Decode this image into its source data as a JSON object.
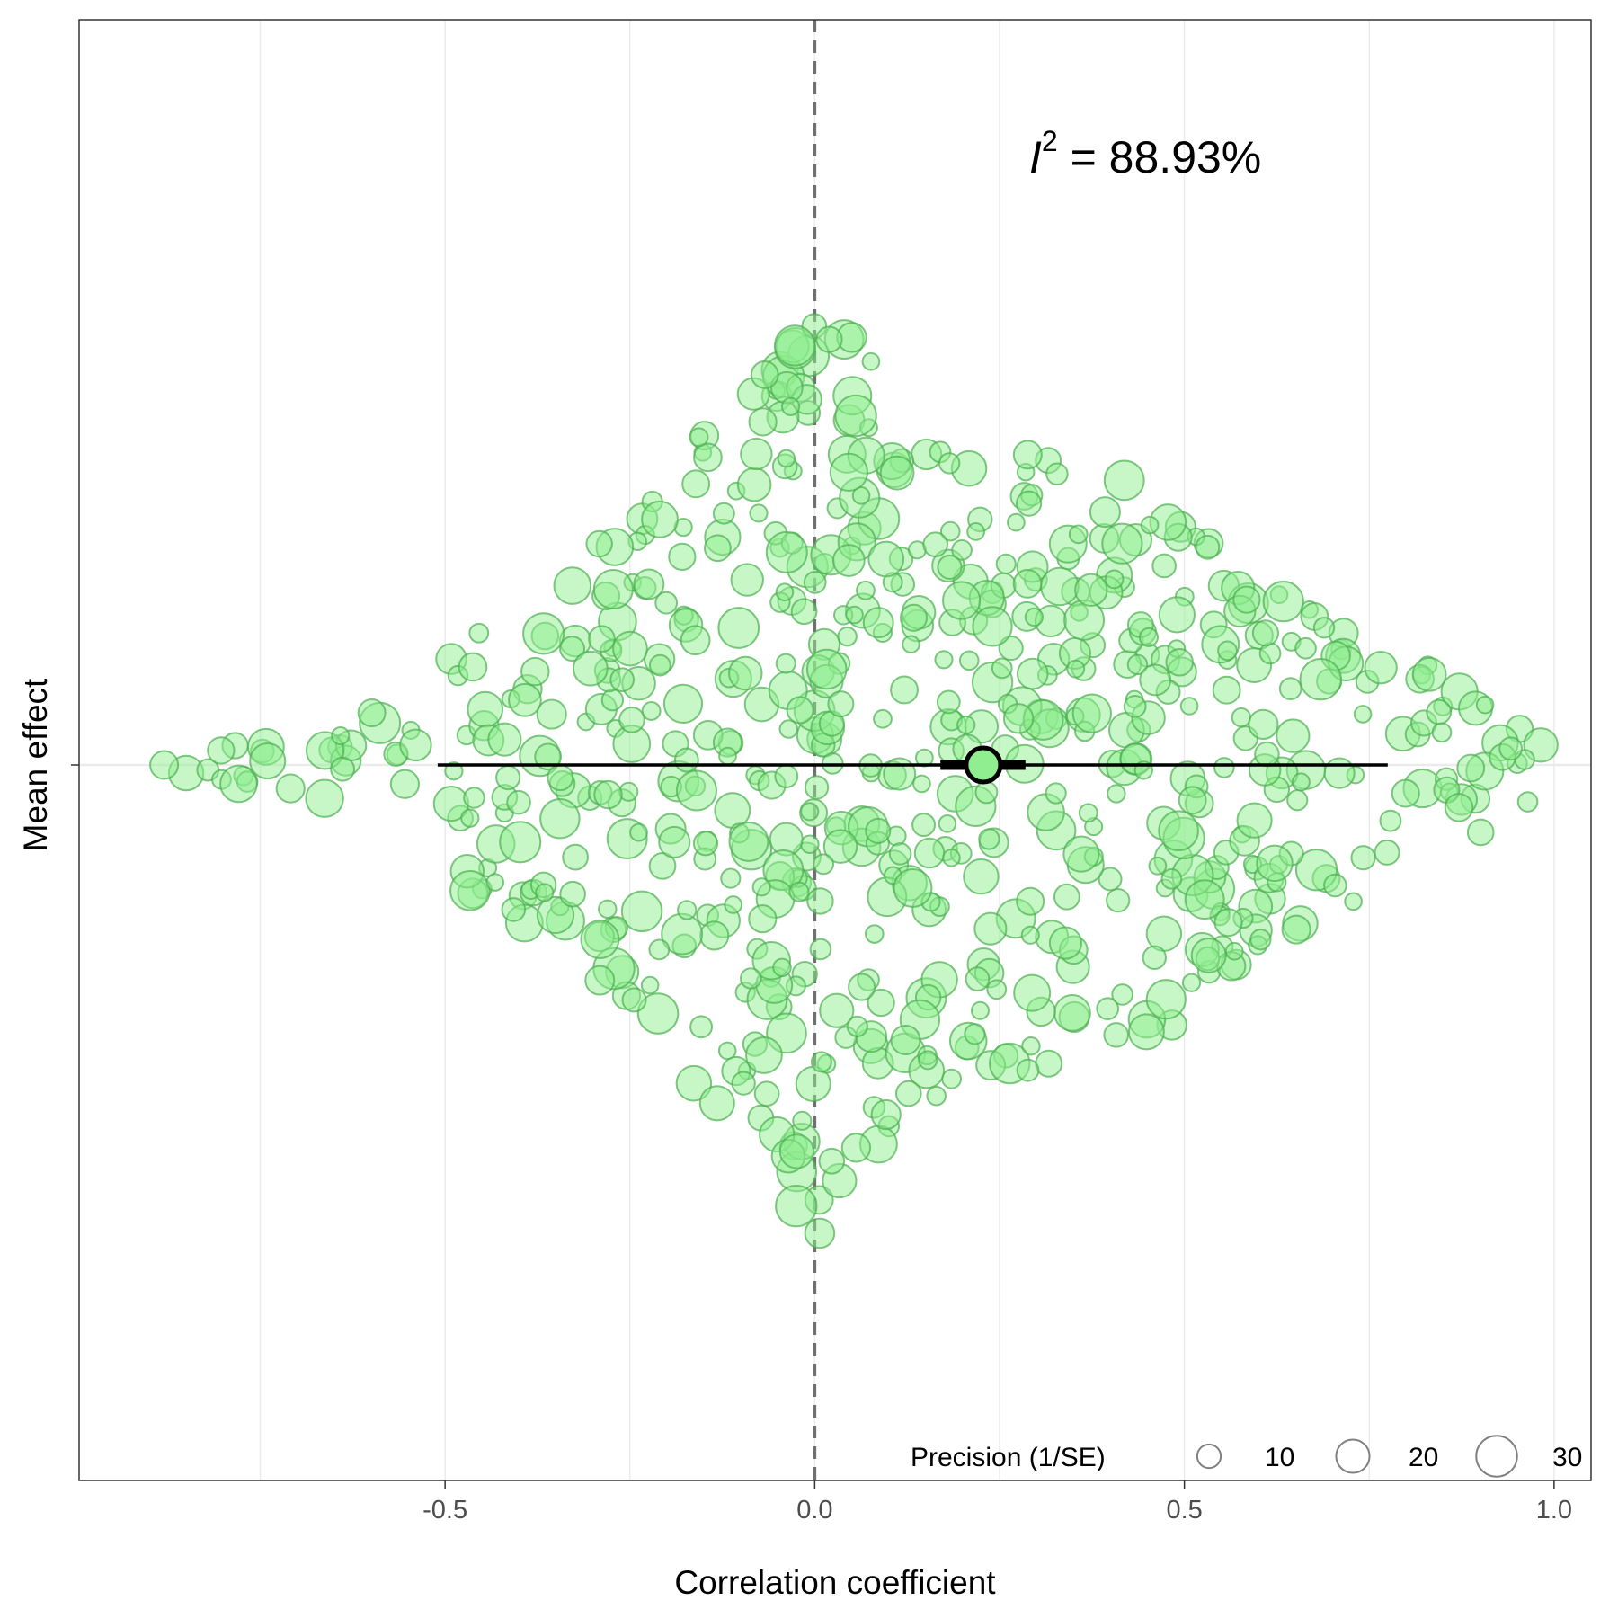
{
  "chart_data": {
    "type": "scatter",
    "subtype": "orchard-plot",
    "xlabel": "Correlation coefficient",
    "ylabel": "Mean effect",
    "xlim": [
      -0.995,
      1.05
    ],
    "x_ticks": [
      -0.5,
      0.0,
      0.5,
      1.0
    ],
    "x_tick_labels": [
      "-0.5",
      "0.0",
      "0.5",
      "1.0"
    ],
    "reference_line_x": 0.0,
    "grid": true,
    "annotation": {
      "symbol": "I",
      "superscript": "2",
      "text": " = 88.93%",
      "value_percent": 88.93
    },
    "summary": {
      "label": "Mean effect",
      "estimate": 0.228,
      "ci": [
        0.17,
        0.285
      ],
      "pi": [
        -0.51,
        0.775
      ]
    },
    "legend": {
      "title": "Precision (1/SE)",
      "placement": "bottom-right",
      "values": [
        10,
        20,
        30
      ],
      "labels": [
        "10",
        "20",
        "30"
      ]
    },
    "point_count_estimate": 700,
    "point_colors": {
      "fill": "#90ee90",
      "stroke": "#4caf50",
      "summary_fill": "#90ee90",
      "summary_stroke": "#000000"
    },
    "density_profile": [
      [
        -0.88,
        0.03
      ],
      [
        -0.72,
        0.06
      ],
      [
        -0.6,
        0.12
      ],
      [
        -0.5,
        0.24
      ],
      [
        -0.4,
        0.33
      ],
      [
        -0.3,
        0.45
      ],
      [
        -0.2,
        0.64
      ],
      [
        -0.1,
        0.78
      ],
      [
        0.0,
        1.0
      ],
      [
        0.08,
        0.85
      ],
      [
        0.15,
        0.72
      ],
      [
        0.25,
        0.68
      ],
      [
        0.35,
        0.62
      ],
      [
        0.45,
        0.6
      ],
      [
        0.55,
        0.44
      ],
      [
        0.65,
        0.35
      ],
      [
        0.75,
        0.27
      ],
      [
        0.85,
        0.2
      ],
      [
        0.92,
        0.12
      ],
      [
        0.99,
        0.06
      ]
    ]
  }
}
